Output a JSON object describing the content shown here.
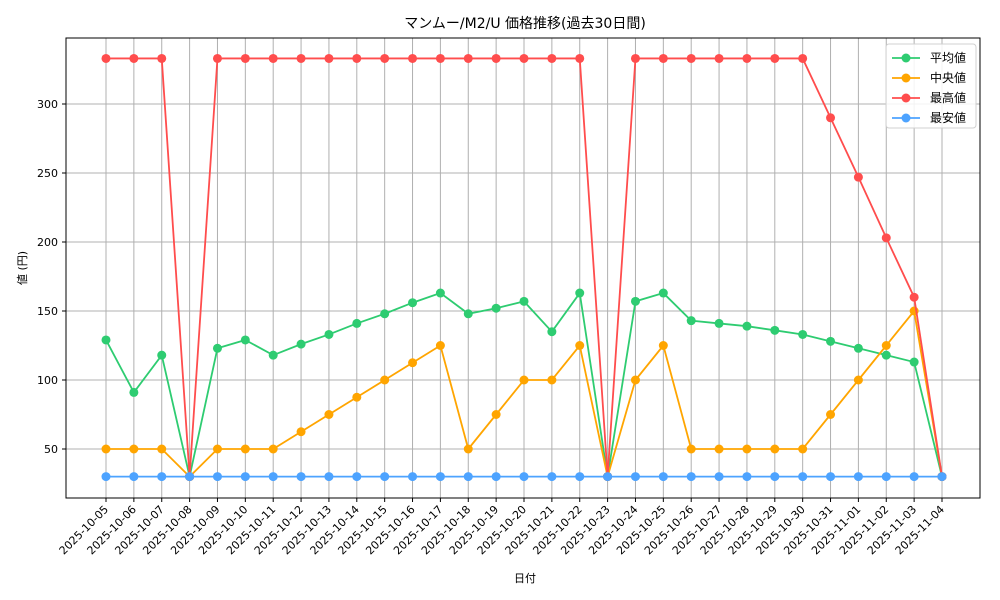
{
  "chart_data": {
    "type": "line",
    "title": "マンムー/M2/U 価格推移(過去30日間)",
    "xlabel": "日付",
    "ylabel": "値 (円)",
    "ylim": [
      15,
      345
    ],
    "yticks": [
      50,
      100,
      150,
      200,
      250,
      300
    ],
    "grid": true,
    "legend_position": "upper right",
    "categories": [
      "2025-10-05",
      "2025-10-06",
      "2025-10-07",
      "2025-10-08",
      "2025-10-09",
      "2025-10-10",
      "2025-10-11",
      "2025-10-12",
      "2025-10-13",
      "2025-10-14",
      "2025-10-15",
      "2025-10-16",
      "2025-10-17",
      "2025-10-18",
      "2025-10-19",
      "2025-10-20",
      "2025-10-21",
      "2025-10-22",
      "2025-10-23",
      "2025-10-24",
      "2025-10-25",
      "2025-10-26",
      "2025-10-27",
      "2025-10-28",
      "2025-10-29",
      "2025-10-30",
      "2025-10-31",
      "2025-11-01",
      "2025-11-02",
      "2025-11-03",
      "2025-11-04"
    ],
    "series": [
      {
        "name": "平均値",
        "color": "#2ecc71",
        "values": [
          129,
          91,
          118,
          30,
          123,
          129,
          118,
          126,
          133,
          141,
          148,
          156,
          163,
          148,
          152,
          157,
          135,
          163,
          30,
          157,
          163,
          143,
          141,
          139,
          136,
          133,
          128,
          123,
          118,
          113,
          30
        ]
      },
      {
        "name": "中央値",
        "color": "#ffa500",
        "values": [
          50,
          50,
          50,
          30,
          50,
          50,
          50,
          62.5,
          75,
          87.5,
          100,
          112.5,
          125,
          50,
          75,
          100,
          100,
          125,
          30,
          100,
          125,
          50,
          50,
          50,
          50,
          50,
          75,
          100,
          125,
          150,
          30
        ]
      },
      {
        "name": "最高値",
        "color": "#ff4d4d",
        "values": [
          333,
          333,
          333,
          30,
          333,
          333,
          333,
          333,
          333,
          333,
          333,
          333,
          333,
          333,
          333,
          333,
          333,
          333,
          30,
          333,
          333,
          333,
          333,
          333,
          333,
          333,
          290,
          247,
          203,
          160,
          30
        ]
      },
      {
        "name": "最安値",
        "color": "#4da3ff",
        "values": [
          30,
          30,
          30,
          30,
          30,
          30,
          30,
          30,
          30,
          30,
          30,
          30,
          30,
          30,
          30,
          30,
          30,
          30,
          30,
          30,
          30,
          30,
          30,
          30,
          30,
          30,
          30,
          30,
          30,
          30,
          30
        ]
      }
    ]
  }
}
